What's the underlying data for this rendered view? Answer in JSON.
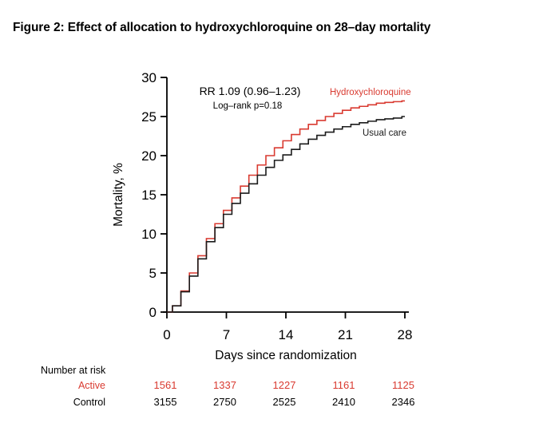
{
  "figure": {
    "title": "Figure 2: Effect of allocation to hydroxychloroquine on 28–day mortality"
  },
  "colors": {
    "active_red": "#d93a30",
    "control_black": "#1b1b1b",
    "axis_black": "#000000",
    "background": "#ffffff"
  },
  "chart_data": {
    "type": "line",
    "subtype": "kaplan-meier-step",
    "title": "",
    "xlabel": "Days since randomization",
    "ylabel": "Mortality, %",
    "xlim": [
      0,
      28
    ],
    "ylim": [
      0,
      30
    ],
    "xticks": [
      0,
      7,
      14,
      21,
      28
    ],
    "yticks": [
      0,
      5,
      10,
      15,
      20,
      25,
      30
    ],
    "grid": false,
    "annotation": {
      "line1": "RR 1.09 (0.96–1.23)",
      "line2": "Log–rank p=0.18"
    },
    "x": [
      0,
      1,
      2,
      3,
      4,
      5,
      6,
      7,
      8,
      9,
      10,
      11,
      12,
      13,
      14,
      15,
      16,
      17,
      18,
      19,
      20,
      21,
      22,
      23,
      24,
      25,
      26,
      27,
      28
    ],
    "series": [
      {
        "name": "Hydroxychloroquine",
        "color": "#d93a30",
        "values": [
          0,
          0.8,
          2.7,
          5.0,
          7.2,
          9.4,
          11.3,
          13.0,
          14.6,
          16.1,
          17.5,
          18.8,
          20.0,
          21.0,
          21.9,
          22.7,
          23.4,
          24.0,
          24.5,
          25.0,
          25.4,
          25.8,
          26.1,
          26.3,
          26.5,
          26.7,
          26.8,
          26.9,
          27.0
        ]
      },
      {
        "name": "Usual care",
        "color": "#1b1b1b",
        "values": [
          0,
          0.8,
          2.6,
          4.6,
          6.8,
          9.0,
          10.8,
          12.5,
          13.9,
          15.2,
          16.4,
          17.5,
          18.5,
          19.4,
          20.1,
          20.8,
          21.5,
          22.1,
          22.6,
          23.0,
          23.4,
          23.7,
          24.0,
          24.2,
          24.4,
          24.6,
          24.7,
          24.8,
          25.0
        ]
      }
    ],
    "number_at_risk": {
      "header": "Number at risk",
      "timepoints": [
        0,
        7,
        14,
        21,
        28
      ],
      "rows": [
        {
          "label": "Active",
          "color": "#d93a30",
          "values": [
            "1561",
            "1337",
            "1227",
            "1161",
            "1125"
          ]
        },
        {
          "label": "Control",
          "color": "#000000",
          "values": [
            "3155",
            "2750",
            "2525",
            "2410",
            "2346"
          ]
        }
      ]
    }
  }
}
